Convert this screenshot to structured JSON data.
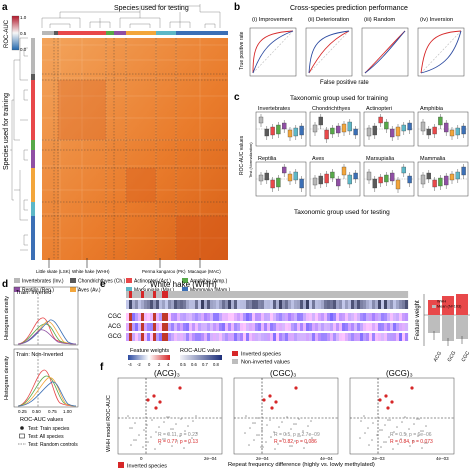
{
  "panels": {
    "a": {
      "letter": "a",
      "top_title": "Species used for testing",
      "left_title": "Species used for training",
      "legend_title": "ROC-AUC",
      "legend_ticks": [
        "1.0",
        "0.5",
        "0.0"
      ],
      "annotations": [
        {
          "text": "Little skate (LSK)"
        },
        {
          "text": "White hake (WHH)"
        },
        {
          "text": "Perma kangaroo (PK)"
        },
        {
          "text": "Macaque (MAC)"
        }
      ],
      "group_legend": [
        {
          "label": "Invertebrates (Inv.)",
          "color": "#b8b8b8"
        },
        {
          "label": "Chondrichthyes (Ch.)",
          "color": "#5a5a5a"
        },
        {
          "label": "Actinopteri (Act.)",
          "color": "#e8484a"
        },
        {
          "label": "Amphibia (Amp.)",
          "color": "#57a849"
        },
        {
          "label": "Reptilia (Rep.)",
          "color": "#8f4fa4"
        },
        {
          "label": "Aves (Av.)",
          "color": "#f3a63b"
        },
        {
          "label": "Marsupialia (Mar.)",
          "color": "#5db7c7"
        },
        {
          "label": "Mammalia (Mam.)",
          "color": "#3b6fb6"
        }
      ]
    },
    "b": {
      "letter": "b",
      "title": "Cross-species prediction performance",
      "xlabel": "False positive rate",
      "ylabel": "True positive rate",
      "subplots": [
        "(i) Improvement",
        "(ii) Deterioration",
        "(iii) Random",
        "(iv) Inversion"
      ]
    },
    "c": {
      "letter": "c",
      "top_title": "Taxonomic group used for training",
      "bottom_title": "Taxonomic group used for testing",
      "ylabel": "ROC-AUC values",
      "ylabel_right": "Test (Normalization)",
      "groups": [
        "Invertebrates",
        "Chondrichthyes",
        "Actinopteri",
        "Amphibia",
        "Reptilia",
        "Aves",
        "Marsupialia",
        "Mammalia"
      ]
    },
    "d": {
      "letter": "d",
      "top_label": "Train: Inverted",
      "bottom_label": "Train: Non-Inverted",
      "ylabel": "Histogram density",
      "xlabel": "ROC-AUC values",
      "xticks": [
        "0.25",
        "0.50",
        "0.75",
        "1.00"
      ],
      "legend": [
        {
          "symbol": "dot",
          "label": "Test: Train species"
        },
        {
          "symbol": "box",
          "label": "Test: All species"
        },
        {
          "symbol": "dash",
          "label": "Test: Random controls"
        }
      ]
    },
    "e": {
      "letter": "e",
      "callout": "White hake (WHH)",
      "rows": [
        "CGC",
        "ACG",
        "GCG"
      ],
      "weights_title": "Feature weights",
      "weights_ticks": [
        "-4",
        "-2",
        "0",
        "2",
        "4"
      ],
      "auc_title": "ROC-AUC value",
      "auc_ticks": [
        "0.5",
        "0.6",
        "0.7",
        "0.8"
      ],
      "legend": [
        {
          "label": "Inverted species",
          "color": "#d62728"
        },
        {
          "label": "Non-inverted values",
          "color": "#bdbdbd"
        }
      ],
      "bar_ylabel": "Feature weight",
      "bar_legend": [
        "WHH",
        "Mean (N=103)"
      ],
      "bar_categories": [
        "ACG",
        "GCG",
        "CGC"
      ]
    },
    "f": {
      "letter": "f",
      "ylabel": "WHH model ROC-AUC",
      "xlabel": "Repeat frequency difference (highly vs. lowly methylated)",
      "legend": "Inverted species",
      "subplots": [
        {
          "title": "(ACG)₃",
          "stat_grey": "R = 0.11, p = 0.23",
          "stat_red": "R = 0.77, p = 0.13",
          "xticks": [
            "0",
            "2e−04"
          ]
        },
        {
          "title": "(CGC)₃",
          "stat_grey": "R = 0.5, p = 2.7e−09",
          "stat_red": "R = 0.82, p = 0.086",
          "xticks": [
            "2e−04",
            "4e−04"
          ]
        },
        {
          "title": "(GCG)₃",
          "stat_grey": "R = 0.5, p = 6e−06",
          "stat_red": "R = 0.84, p = 0.073",
          "xticks": [
            "2e−03",
            "4e−03"
          ]
        }
      ]
    }
  },
  "colors": {
    "heat_high": "#e06a1f",
    "heat_low": "#fbe2c0",
    "accent_red": "#d62728",
    "roc_red": "#d62728",
    "roc_blue": "#2c4aa0",
    "grey": "#9a9a9a"
  }
}
